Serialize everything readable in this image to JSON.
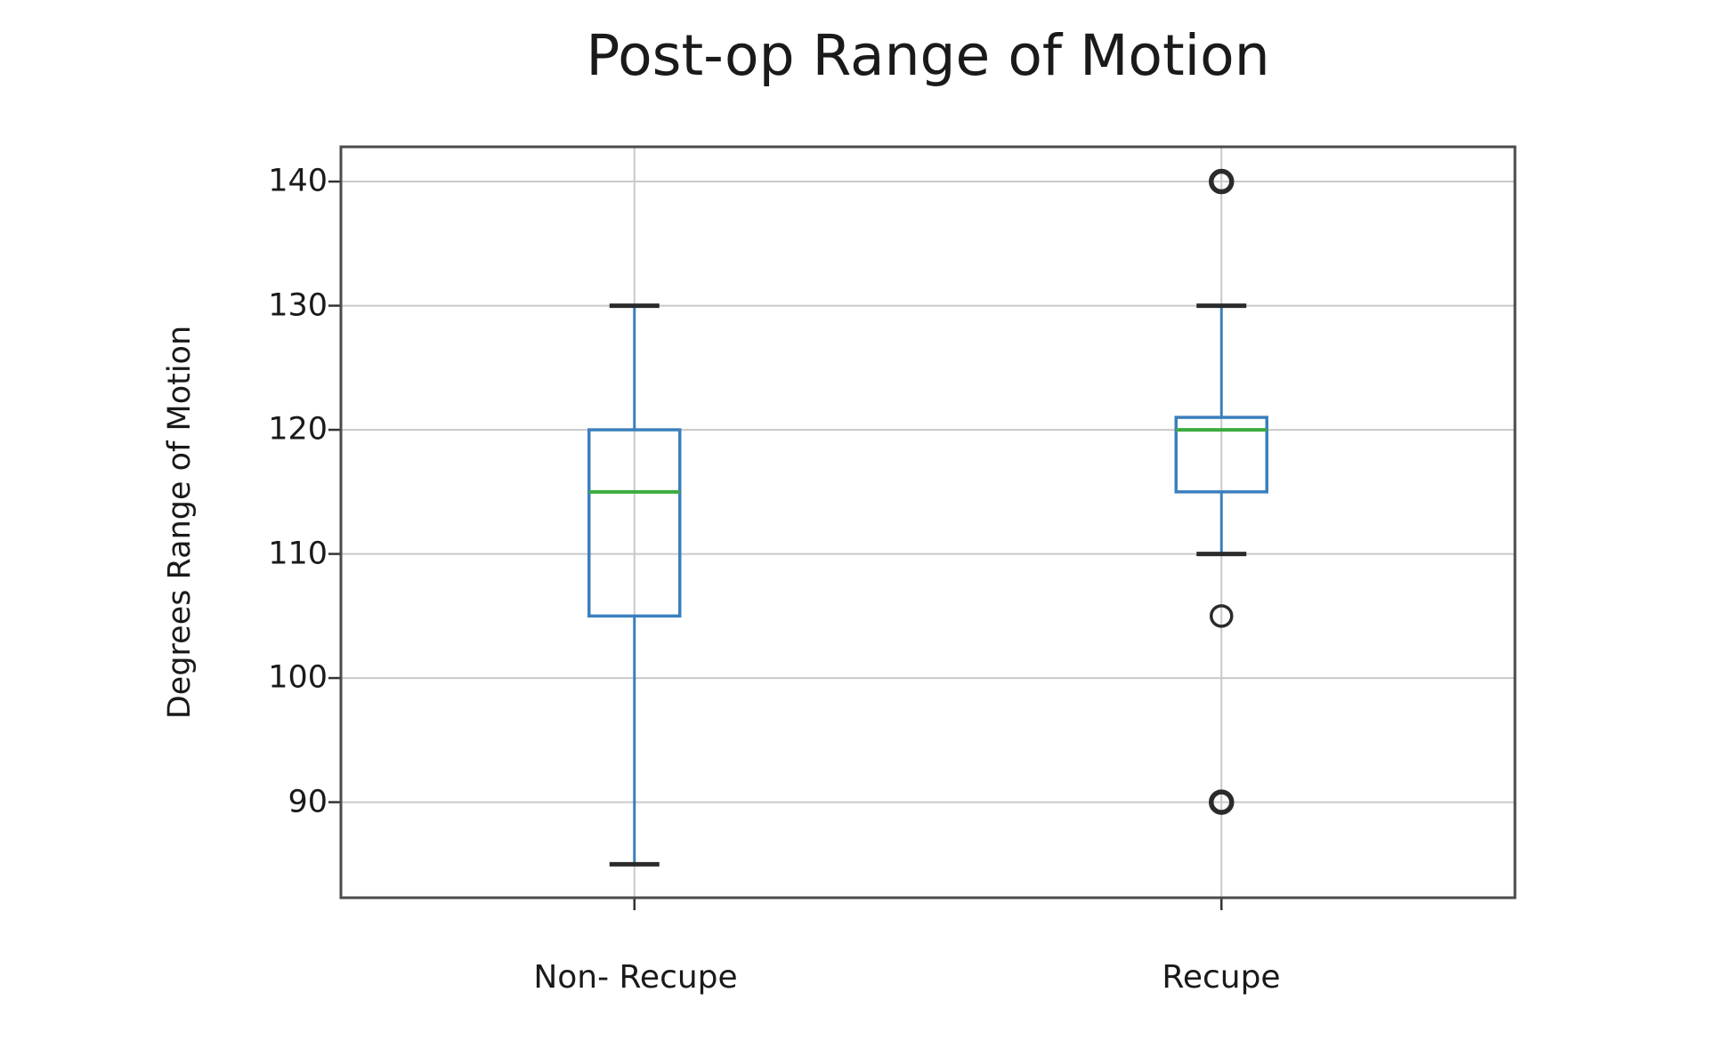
{
  "chart_data": {
    "type": "boxplot",
    "title": "Post-op Range of Motion",
    "ylabel": "Degrees Range of Motion",
    "xlabel": "",
    "categories": [
      "Non- Recupe",
      "Recupe"
    ],
    "yticks": [
      90,
      100,
      110,
      120,
      130,
      140
    ],
    "ylim": [
      82.3,
      142.8
    ],
    "grid": true,
    "legend": false,
    "series": [
      {
        "name": "Non- Recupe",
        "whisker_low": 85,
        "q1": 105,
        "median": 115,
        "q3": 120,
        "whisker_high": 130,
        "outliers": []
      },
      {
        "name": "Recupe",
        "whisker_low": 110,
        "q1": 115,
        "median": 120,
        "q3": 121,
        "whisker_high": 130,
        "outliers": [
          {
            "value": 140,
            "bold": true
          },
          {
            "value": 105,
            "bold": false
          },
          {
            "value": 90,
            "bold": true
          }
        ]
      }
    ],
    "colors": {
      "box": "#3b80bd",
      "whisker": "#3b80bd",
      "median": "#3cab40",
      "cap": "#2b2b2b",
      "outlier": "#2b2b2b",
      "grid": "#c9c9c9",
      "spine": "#4a4a4a",
      "tick": "#333333",
      "text": "#1a1a1a",
      "background": "#ffffff"
    }
  }
}
